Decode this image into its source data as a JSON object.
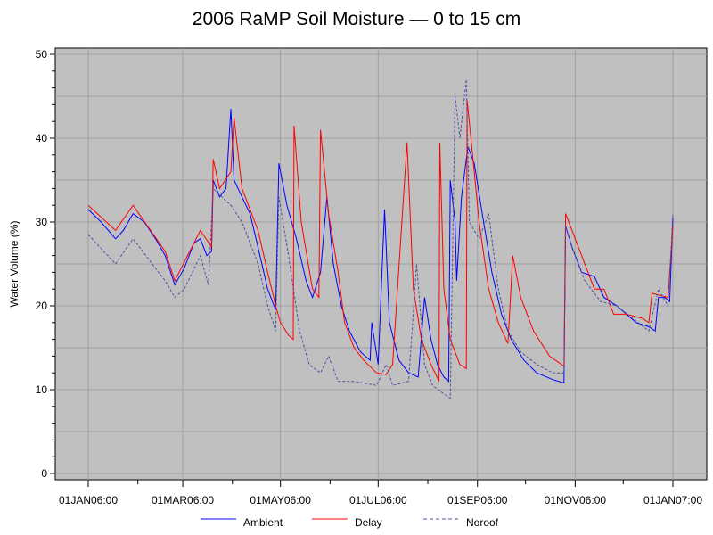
{
  "chart_data": {
    "type": "line",
    "title": "2006 RaMP Soil Moisture — 0 to 15 cm",
    "xlabel": "",
    "ylabel": "Water Volume (%)",
    "ylim": [
      0,
      50
    ],
    "yticks": [
      "0",
      "10",
      "20",
      "30",
      "40",
      "50"
    ],
    "xlim_days": [
      0,
      365
    ],
    "xticks": [
      {
        "day": 0,
        "label": "01JAN06:00"
      },
      {
        "day": 59,
        "label": "01MAR06:00"
      },
      {
        "day": 120,
        "label": "01MAY06:00"
      },
      {
        "day": 181,
        "label": "01JUL06:00"
      },
      {
        "day": 243,
        "label": "01SEP06:00"
      },
      {
        "day": 304,
        "label": "01NOV06:00"
      },
      {
        "day": 365,
        "label": "01JAN07:00"
      }
    ],
    "grid": true,
    "legend_position": "bottom",
    "series": [
      {
        "name": "Ambient",
        "color": "#0000ff",
        "dash": false,
        "points": [
          [
            0,
            31.5
          ],
          [
            8,
            30
          ],
          [
            17,
            28
          ],
          [
            22,
            29
          ],
          [
            28,
            31
          ],
          [
            35,
            30
          ],
          [
            42,
            28
          ],
          [
            48,
            26
          ],
          [
            54,
            22.5
          ],
          [
            60,
            24.5
          ],
          [
            66,
            27.5
          ],
          [
            70,
            28
          ],
          [
            74,
            26
          ],
          [
            77,
            26.5
          ],
          [
            78,
            35
          ],
          [
            82,
            33
          ],
          [
            86,
            34
          ],
          [
            89,
            43.5
          ],
          [
            91,
            35
          ],
          [
            96,
            33
          ],
          [
            101,
            31
          ],
          [
            106,
            27
          ],
          [
            112,
            22
          ],
          [
            117,
            19.5
          ],
          [
            119,
            37
          ],
          [
            124,
            32
          ],
          [
            130,
            28
          ],
          [
            136,
            23
          ],
          [
            140,
            21
          ],
          [
            145,
            24
          ],
          [
            149,
            33
          ],
          [
            153,
            25
          ],
          [
            158,
            20
          ],
          [
            163,
            17
          ],
          [
            170,
            14.5
          ],
          [
            176,
            13.5
          ],
          [
            177,
            18
          ],
          [
            181,
            13
          ],
          [
            185,
            31.5
          ],
          [
            188,
            18
          ],
          [
            194,
            13.5
          ],
          [
            200,
            12
          ],
          [
            206,
            11.5
          ],
          [
            210,
            21
          ],
          [
            214,
            16
          ],
          [
            218,
            13
          ],
          [
            222,
            11.5
          ],
          [
            225,
            11
          ],
          [
            226,
            35
          ],
          [
            229,
            30
          ],
          [
            230,
            23
          ],
          [
            233,
            33
          ],
          [
            237,
            39
          ],
          [
            241,
            37
          ],
          [
            246,
            31
          ],
          [
            252,
            24
          ],
          [
            258,
            19
          ],
          [
            264,
            16
          ],
          [
            272,
            13.5
          ],
          [
            280,
            12
          ],
          [
            290,
            11.2
          ],
          [
            297,
            10.8
          ],
          [
            298,
            29.5
          ],
          [
            302,
            27
          ],
          [
            308,
            24
          ],
          [
            316,
            23.5
          ],
          [
            322,
            21
          ],
          [
            330,
            20
          ],
          [
            336,
            19
          ],
          [
            342,
            18
          ],
          [
            350,
            17.5
          ],
          [
            354,
            17
          ],
          [
            356,
            21
          ],
          [
            360,
            21
          ],
          [
            363,
            20.5
          ],
          [
            365,
            30.5
          ]
        ]
      },
      {
        "name": "Delay",
        "color": "#ff0000",
        "dash": false,
        "points": [
          [
            0,
            32
          ],
          [
            17,
            29
          ],
          [
            28,
            32
          ],
          [
            48,
            26.5
          ],
          [
            54,
            23
          ],
          [
            70,
            29
          ],
          [
            77,
            27
          ],
          [
            78,
            37.5
          ],
          [
            82,
            34
          ],
          [
            89,
            36
          ],
          [
            91,
            42.5
          ],
          [
            96,
            34
          ],
          [
            106,
            29
          ],
          [
            112,
            24
          ],
          [
            117,
            20
          ],
          [
            120,
            18
          ],
          [
            125,
            16.5
          ],
          [
            128,
            16
          ],
          [
            128.5,
            41.5
          ],
          [
            133,
            30
          ],
          [
            140,
            22
          ],
          [
            144,
            21
          ],
          [
            145,
            41
          ],
          [
            150,
            31
          ],
          [
            156,
            24
          ],
          [
            160,
            18
          ],
          [
            166,
            15
          ],
          [
            172,
            13.5
          ],
          [
            180,
            12
          ],
          [
            186,
            11.8
          ],
          [
            190,
            13
          ],
          [
            199,
            39.5
          ],
          [
            203,
            22
          ],
          [
            208,
            16
          ],
          [
            214,
            13
          ],
          [
            219,
            11
          ],
          [
            219.5,
            39.5
          ],
          [
            222,
            22
          ],
          [
            226,
            16
          ],
          [
            232,
            13
          ],
          [
            236,
            12.5
          ],
          [
            236.5,
            44.5
          ],
          [
            240,
            38
          ],
          [
            244,
            30
          ],
          [
            250,
            22
          ],
          [
            256,
            18
          ],
          [
            262,
            15.5
          ],
          [
            265,
            26
          ],
          [
            270,
            21
          ],
          [
            278,
            17
          ],
          [
            288,
            14
          ],
          [
            297,
            12.8
          ],
          [
            298,
            31
          ],
          [
            302,
            29
          ],
          [
            308,
            26
          ],
          [
            316,
            22
          ],
          [
            322,
            22
          ],
          [
            328,
            19
          ],
          [
            336,
            19
          ],
          [
            346,
            18.5
          ],
          [
            350,
            18
          ],
          [
            352,
            21.5
          ],
          [
            362,
            21
          ],
          [
            365,
            29.5
          ]
        ]
      },
      {
        "name": "Noroof",
        "color": "#5050a0",
        "dash": true,
        "points": [
          [
            0,
            28.5
          ],
          [
            17,
            25
          ],
          [
            28,
            28
          ],
          [
            48,
            23
          ],
          [
            54,
            21
          ],
          [
            60,
            22
          ],
          [
            70,
            26
          ],
          [
            75,
            22.5
          ],
          [
            78,
            34
          ],
          [
            89,
            32
          ],
          [
            96,
            30
          ],
          [
            106,
            25
          ],
          [
            112,
            20
          ],
          [
            117,
            17
          ],
          [
            119,
            33
          ],
          [
            125,
            26
          ],
          [
            132,
            17
          ],
          [
            138,
            13
          ],
          [
            145,
            12
          ],
          [
            150,
            14
          ],
          [
            156,
            11
          ],
          [
            165,
            11
          ],
          [
            172,
            10.8
          ],
          [
            180,
            10.5
          ],
          [
            186,
            13
          ],
          [
            190,
            10.5
          ],
          [
            200,
            11
          ],
          [
            205,
            25
          ],
          [
            210,
            13
          ],
          [
            215,
            10.5
          ],
          [
            222,
            9.5
          ],
          [
            226,
            9
          ],
          [
            229,
            45
          ],
          [
            232,
            40
          ],
          [
            236,
            47
          ],
          [
            238,
            30
          ],
          [
            244,
            28
          ],
          [
            250,
            31
          ],
          [
            256,
            22
          ],
          [
            262,
            17
          ],
          [
            270,
            14.5
          ],
          [
            280,
            13
          ],
          [
            290,
            12
          ],
          [
            297,
            12
          ],
          [
            298,
            29.5
          ],
          [
            302,
            27
          ],
          [
            310,
            23
          ],
          [
            320,
            20.5
          ],
          [
            330,
            20
          ],
          [
            340,
            18.5
          ],
          [
            350,
            17
          ],
          [
            356,
            22
          ],
          [
            362,
            20
          ],
          [
            365,
            31
          ]
        ]
      }
    ]
  }
}
